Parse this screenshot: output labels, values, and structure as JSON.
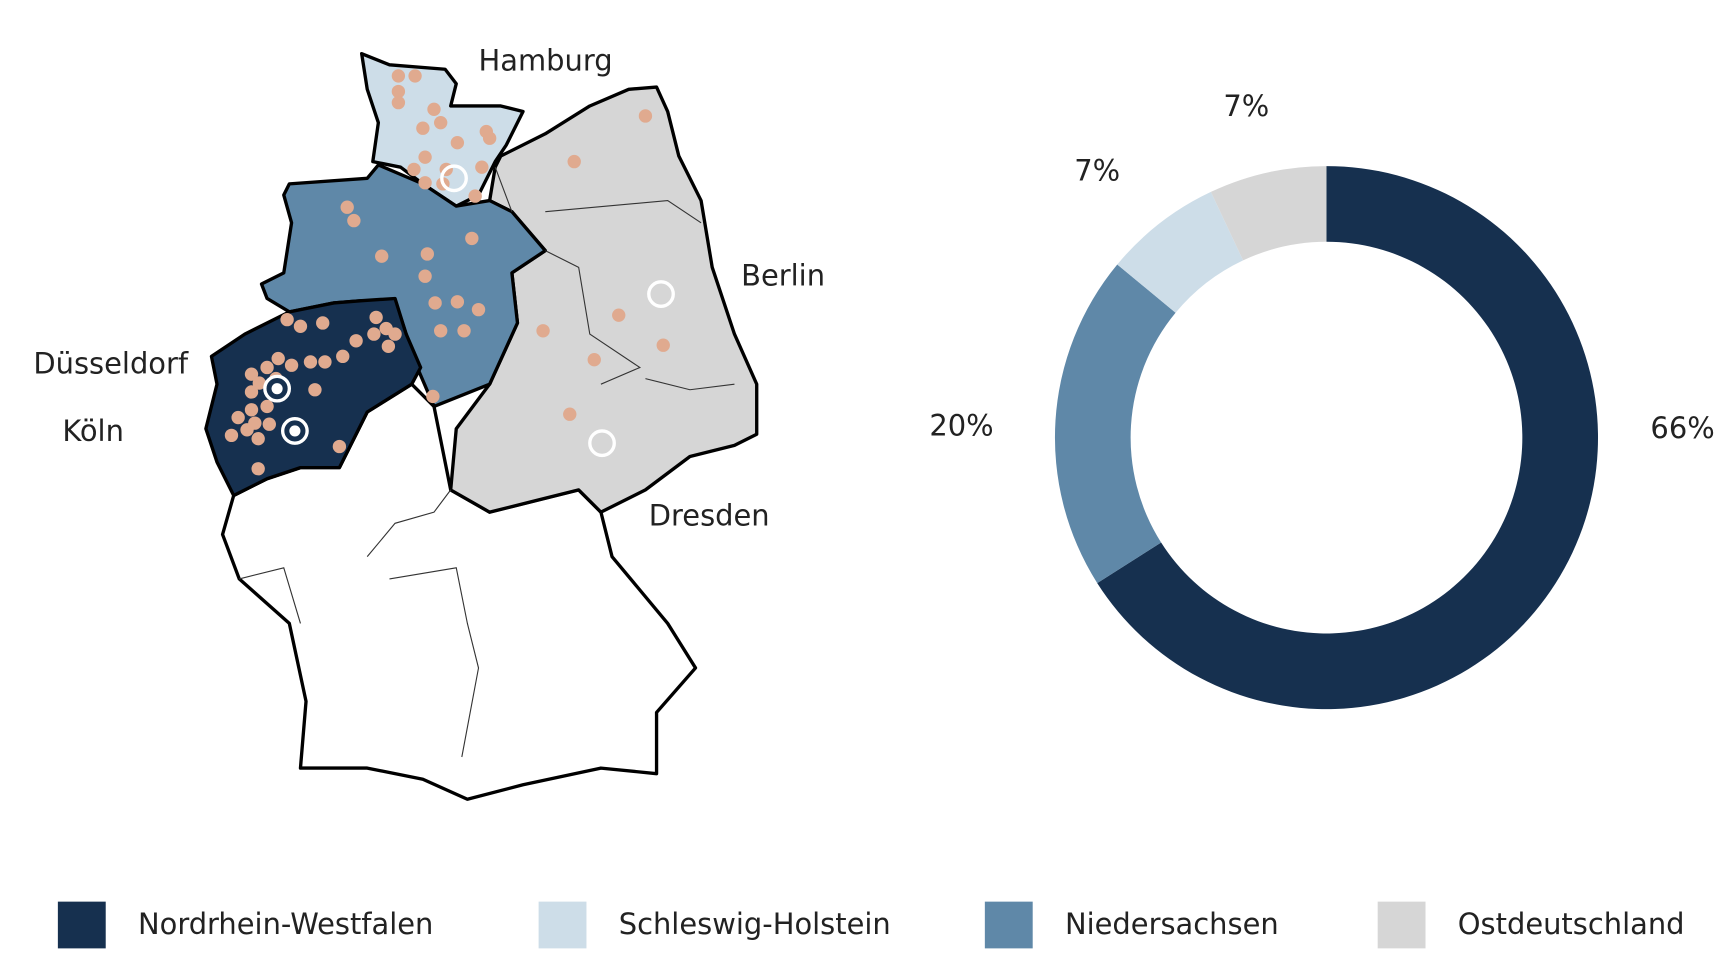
{
  "map": {
    "cities": [
      "Hamburg",
      "Berlin",
      "Düsseldorf",
      "Köln",
      "Dresden"
    ]
  },
  "chart_data": {
    "type": "donut",
    "categories": [
      "Nordrhein-Westfalen",
      "Niedersachsen",
      "Schleswig-Holstein",
      "Ostdeutschland"
    ],
    "values": [
      66,
      20,
      7,
      7
    ],
    "value_labels": [
      "66%",
      "20%",
      "7%",
      "7%"
    ],
    "colors": [
      "#16304f",
      "#5f88a8",
      "#cddde8",
      "#d6d6d6"
    ]
  }
}
